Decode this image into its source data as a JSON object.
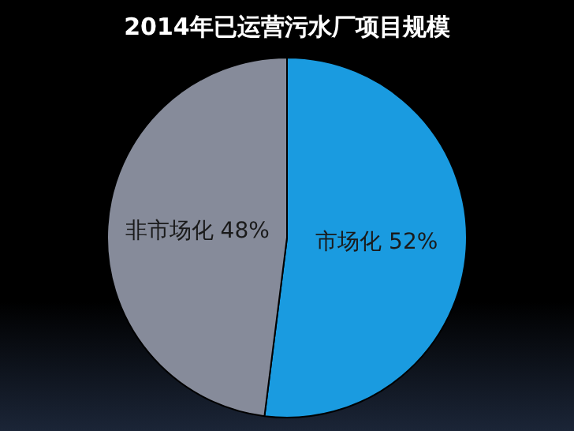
{
  "chart_data": {
    "type": "pie",
    "title": "2014年已运营污水厂项目规模",
    "categories": [
      "市场化",
      "非市场化"
    ],
    "values": [
      52,
      48
    ],
    "value_labels": [
      "52%",
      "48%"
    ],
    "colors": [
      "#1a9be0",
      "#868b9a"
    ]
  }
}
